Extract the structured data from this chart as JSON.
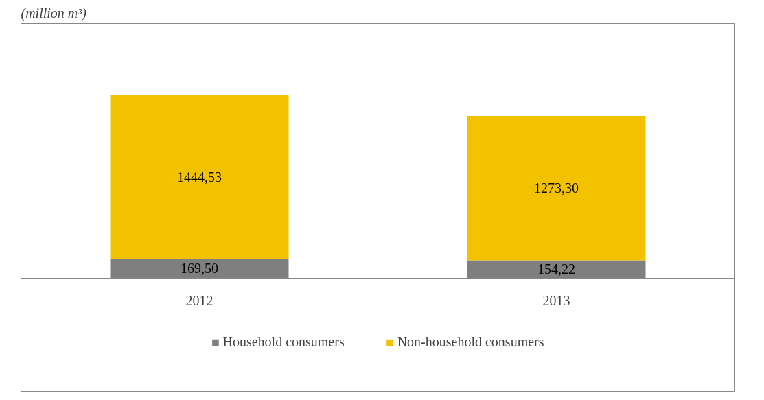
{
  "chart_data": {
    "type": "bar",
    "stacked": true,
    "title": "(million m³)",
    "categories": [
      "2012",
      "2013"
    ],
    "series": [
      {
        "name": "Household consumers",
        "color": "#7f7f7f",
        "values": [
          169.5,
          154.22
        ],
        "value_labels": [
          "169,50",
          "154,22"
        ]
      },
      {
        "name": "Non-household consumers",
        "color": "#f2c200",
        "values": [
          1444.53,
          1273.3
        ],
        "value_labels": [
          "1444,53",
          "1273,30"
        ]
      }
    ],
    "legend": "bottom"
  }
}
